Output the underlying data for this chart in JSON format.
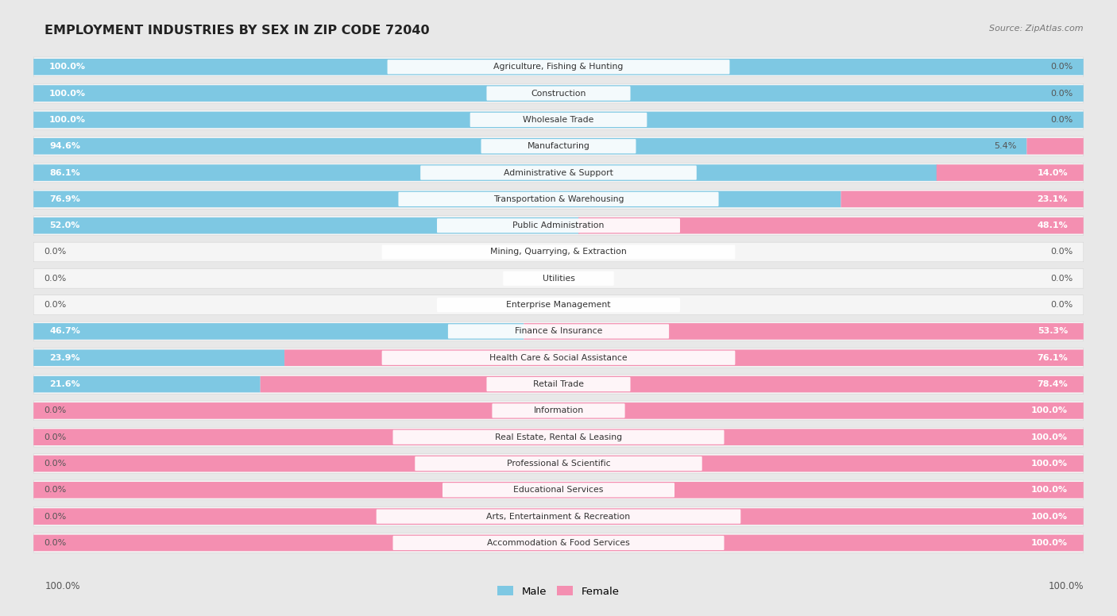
{
  "title": "EMPLOYMENT INDUSTRIES BY SEX IN ZIP CODE 72040",
  "source": "Source: ZipAtlas.com",
  "male_color": "#7ec8e3",
  "female_color": "#f48fb1",
  "male_color_dark": "#5ab4d6",
  "female_color_dark": "#f06292",
  "background_color": "#e8e8e8",
  "row_bg_color": "#f5f5f5",
  "categories": [
    "Agriculture, Fishing & Hunting",
    "Construction",
    "Wholesale Trade",
    "Manufacturing",
    "Administrative & Support",
    "Transportation & Warehousing",
    "Public Administration",
    "Mining, Quarrying, & Extraction",
    "Utilities",
    "Enterprise Management",
    "Finance & Insurance",
    "Health Care & Social Assistance",
    "Retail Trade",
    "Information",
    "Real Estate, Rental & Leasing",
    "Professional & Scientific",
    "Educational Services",
    "Arts, Entertainment & Recreation",
    "Accommodation & Food Services"
  ],
  "male_pct": [
    100.0,
    100.0,
    100.0,
    94.6,
    86.1,
    76.9,
    52.0,
    0.0,
    0.0,
    0.0,
    46.7,
    23.9,
    21.6,
    0.0,
    0.0,
    0.0,
    0.0,
    0.0,
    0.0
  ],
  "female_pct": [
    0.0,
    0.0,
    0.0,
    5.4,
    14.0,
    23.1,
    48.1,
    0.0,
    0.0,
    0.0,
    53.3,
    76.1,
    78.4,
    100.0,
    100.0,
    100.0,
    100.0,
    100.0,
    100.0
  ]
}
